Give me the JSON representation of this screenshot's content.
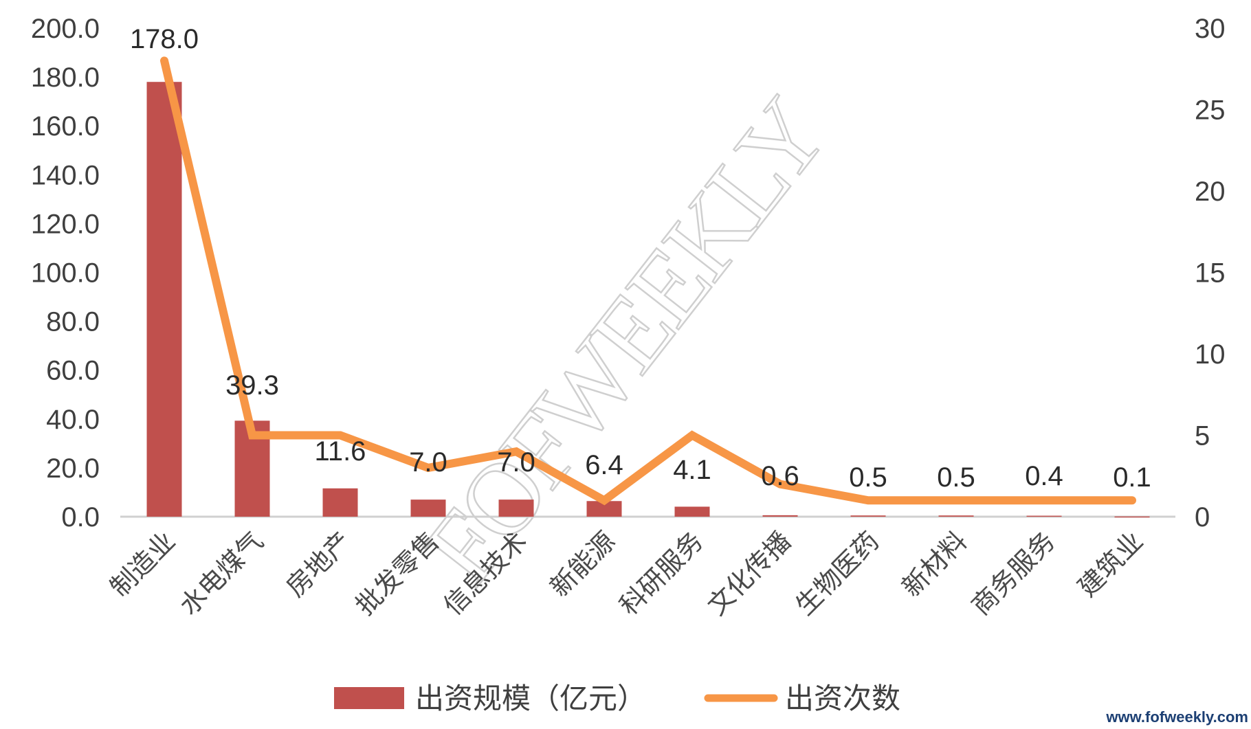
{
  "chart_data": {
    "type": "bar+line",
    "title": "",
    "categories": [
      "制造业",
      "水电煤气",
      "房地产",
      "批发零售",
      "信息技术",
      "新能源",
      "科研服务",
      "文化传播",
      "生物医药",
      "新材料",
      "商务服务",
      "建筑业"
    ],
    "series": [
      {
        "name": "出资规模（亿元）",
        "type": "bar",
        "axis": "left",
        "color": "#c0504d",
        "values": [
          178.0,
          39.3,
          11.6,
          7.0,
          7.0,
          6.4,
          4.1,
          0.6,
          0.5,
          0.5,
          0.4,
          0.1
        ],
        "labels": [
          "178.0",
          "39.3",
          "11.6",
          "7.0",
          "7.0",
          "6.4",
          "4.1",
          "0.6",
          "0.5",
          "0.5",
          "0.4",
          "0.1"
        ]
      },
      {
        "name": "出资次数",
        "type": "line",
        "axis": "right",
        "color": "#f79646",
        "values": [
          28,
          5,
          5,
          3,
          4,
          1,
          5,
          2,
          1,
          1,
          1,
          1
        ]
      }
    ],
    "left_axis": {
      "ylim": [
        0,
        200
      ],
      "ticks": [
        "0.0",
        "20.0",
        "40.0",
        "60.0",
        "80.0",
        "100.0",
        "120.0",
        "140.0",
        "160.0",
        "180.0",
        "200.0"
      ]
    },
    "right_axis": {
      "ylim": [
        0,
        30
      ],
      "ticks": [
        "0",
        "5",
        "10",
        "15",
        "20",
        "25",
        "30"
      ]
    },
    "xlabel": "",
    "ylabel": "",
    "grid": false,
    "legend_position": "bottom"
  },
  "legend": {
    "bar_label": "出资规模（亿元）",
    "line_label": "出资次数"
  },
  "watermark": "FOFWEEKLY",
  "site_url": "www.fofweekly.com",
  "colors": {
    "bar": "#c0504d",
    "line": "#f79646",
    "axis": "#d0d0d0",
    "text": "#3f3f3f"
  }
}
